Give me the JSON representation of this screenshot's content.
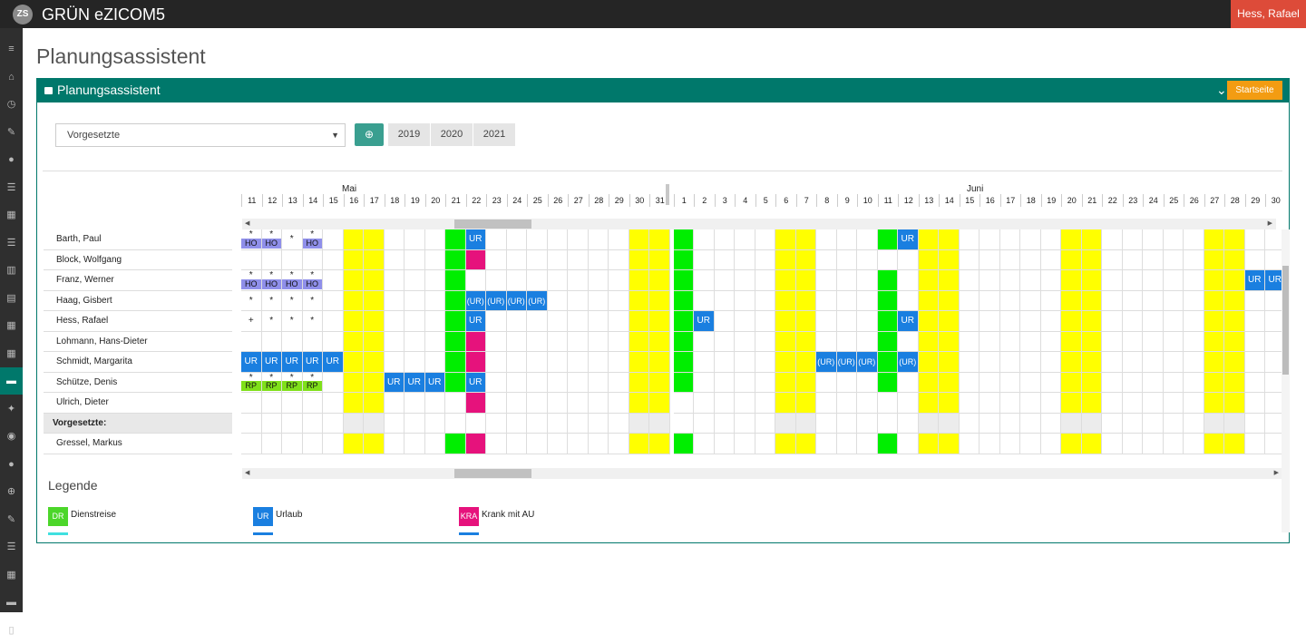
{
  "app": {
    "title": "GRÜN eZICOM5",
    "logo": "ZS",
    "user": "Hess, Rafael"
  },
  "sidebar_icons": [
    "menu-icon",
    "home-icon",
    "clock-icon",
    "edit-icon",
    "info-icon",
    "list-icon",
    "table-icon",
    "list-icon",
    "chart-icon",
    "calendar-icon",
    "table-icon",
    "table-icon",
    "briefcase-icon",
    "wrench-icon",
    "users-icon",
    "info-icon",
    "plus-circle-icon",
    "edit-icon",
    "list-icon",
    "table-icon",
    "briefcase-icon",
    "document-icon"
  ],
  "page": {
    "title": "Planungsassistent"
  },
  "panel": {
    "title": "Planungsassistent",
    "start_button": "Startseite"
  },
  "filter": {
    "select_value": "Vorgesetzte",
    "years": [
      "2019",
      "2020",
      "2021"
    ]
  },
  "months": {
    "may": "Mai",
    "june": "Juni"
  },
  "day_headers": [
    "11",
    "12",
    "13",
    "14",
    "15",
    "16",
    "17",
    "18",
    "19",
    "20",
    "21",
    "22",
    "23",
    "24",
    "25",
    "26",
    "27",
    "28",
    "29",
    "30",
    "31",
    "1",
    "2",
    "3",
    "4",
    "5",
    "6",
    "7",
    "8",
    "9",
    "10",
    "11",
    "12",
    "13",
    "14",
    "15",
    "16",
    "17",
    "18",
    "19",
    "20",
    "21",
    "22",
    "23",
    "24",
    "25",
    "26",
    "27",
    "28",
    "29",
    "30"
  ],
  "column_colors": {
    "yellow": [
      5,
      6,
      19,
      20,
      26,
      27,
      33,
      34,
      40,
      41,
      47,
      48
    ],
    "green": [
      10,
      21
    ],
    "green_rows_only": {
      "col": 31,
      "rows": [
        0,
        2,
        3,
        4,
        5,
        6,
        7,
        10
      ]
    },
    "pink": {
      "col": 11,
      "rows": [
        1,
        5,
        6,
        8,
        10
      ]
    },
    "green_col10_rows": [
      0,
      1,
      2,
      3,
      4,
      5,
      6,
      7,
      10
    ],
    "green_col21_rows": [
      0,
      1,
      2,
      3,
      4,
      5,
      6,
      7,
      10
    ]
  },
  "rows": [
    {
      "name": "Barth, Paul"
    },
    {
      "name": "Block, Wolfgang"
    },
    {
      "name": "Franz, Werner"
    },
    {
      "name": "Haag, Gisbert"
    },
    {
      "name": "Hess, Rafael"
    },
    {
      "name": "Lohmann, Hans-Dieter"
    },
    {
      "name": "Schmidt, Margarita"
    },
    {
      "name": "Schütze, Denis"
    },
    {
      "name": "Ulrich, Dieter"
    },
    {
      "name": "Vorgesetzte:",
      "group": true
    },
    {
      "name": "Gressel, Markus"
    }
  ],
  "entries": [
    {
      "r": 0,
      "c": 0,
      "mark": "*",
      "tag": "HO",
      "type": "ho"
    },
    {
      "r": 0,
      "c": 1,
      "mark": "*",
      "tag": "HO",
      "type": "ho"
    },
    {
      "r": 0,
      "c": 2,
      "center": "*"
    },
    {
      "r": 0,
      "c": 3,
      "mark": "*",
      "tag": "HO",
      "type": "ho"
    },
    {
      "r": 0,
      "c": 11,
      "text": "UR",
      "type": "ur"
    },
    {
      "r": 0,
      "c": 32,
      "text": "UR",
      "type": "ur"
    },
    {
      "r": 2,
      "c": 0,
      "mark": "*",
      "tag": "HO",
      "type": "ho"
    },
    {
      "r": 2,
      "c": 1,
      "mark": "*",
      "tag": "HO",
      "type": "ho"
    },
    {
      "r": 2,
      "c": 2,
      "mark": "*",
      "tag": "HO",
      "type": "ho"
    },
    {
      "r": 2,
      "c": 3,
      "mark": "*",
      "tag": "HO",
      "type": "ho"
    },
    {
      "r": 2,
      "c": 49,
      "text": "UR",
      "type": "ur"
    },
    {
      "r": 2,
      "c": 50,
      "text": "UR",
      "type": "ur"
    },
    {
      "r": 3,
      "c": 0,
      "center": "*"
    },
    {
      "r": 3,
      "c": 1,
      "center": "*"
    },
    {
      "r": 3,
      "c": 2,
      "center": "*"
    },
    {
      "r": 3,
      "c": 3,
      "center": "*"
    },
    {
      "r": 3,
      "c": 11,
      "text": "(UR)",
      "type": "ur"
    },
    {
      "r": 3,
      "c": 12,
      "text": "(UR)",
      "type": "ur"
    },
    {
      "r": 3,
      "c": 13,
      "text": "(UR)",
      "type": "ur"
    },
    {
      "r": 3,
      "c": 14,
      "text": "(UR)",
      "type": "ur"
    },
    {
      "r": 4,
      "c": 0,
      "center": "+"
    },
    {
      "r": 4,
      "c": 1,
      "center": "*"
    },
    {
      "r": 4,
      "c": 2,
      "center": "*"
    },
    {
      "r": 4,
      "c": 3,
      "center": "*"
    },
    {
      "r": 4,
      "c": 11,
      "text": "UR",
      "type": "ur"
    },
    {
      "r": 4,
      "c": 22,
      "text": "UR",
      "type": "ur"
    },
    {
      "r": 4,
      "c": 32,
      "text": "UR",
      "type": "ur"
    },
    {
      "r": 6,
      "c": 0,
      "text": "UR",
      "type": "ur"
    },
    {
      "r": 6,
      "c": 1,
      "text": "UR",
      "type": "ur"
    },
    {
      "r": 6,
      "c": 2,
      "text": "UR",
      "type": "ur"
    },
    {
      "r": 6,
      "c": 3,
      "text": "UR",
      "type": "ur"
    },
    {
      "r": 6,
      "c": 4,
      "text": "UR",
      "type": "ur"
    },
    {
      "r": 6,
      "c": 28,
      "text": "(UR)",
      "type": "ur"
    },
    {
      "r": 6,
      "c": 29,
      "text": "(UR)",
      "type": "ur"
    },
    {
      "r": 6,
      "c": 30,
      "text": "(UR)",
      "type": "ur"
    },
    {
      "r": 6,
      "c": 32,
      "text": "(UR)",
      "type": "ur"
    },
    {
      "r": 7,
      "c": 0,
      "mark": "*",
      "tag": "RP",
      "type": "rp"
    },
    {
      "r": 7,
      "c": 1,
      "mark": "*",
      "tag": "RP",
      "type": "rp"
    },
    {
      "r": 7,
      "c": 2,
      "mark": "*",
      "tag": "RP",
      "type": "rp"
    },
    {
      "r": 7,
      "c": 3,
      "mark": "*",
      "tag": "RP",
      "type": "rp"
    },
    {
      "r": 7,
      "c": 7,
      "text": "UR",
      "type": "ur"
    },
    {
      "r": 7,
      "c": 8,
      "text": "UR",
      "type": "ur"
    },
    {
      "r": 7,
      "c": 9,
      "text": "UR",
      "type": "ur"
    },
    {
      "r": 7,
      "c": 11,
      "text": "UR",
      "type": "ur"
    }
  ],
  "colors": {
    "yellow": "#ffff00",
    "green": "#00ee00",
    "pink": "#e6127c",
    "ur": "#1a7fe0",
    "ho": "#8f8fea",
    "rp": "#7fe01a",
    "group": "#ececec",
    "teal": "#00786b"
  },
  "legend": {
    "title": "Legende",
    "items": [
      {
        "code": "DR",
        "label": "Dienstreise",
        "color": "#4cd62a",
        "line": "#3fe0e0"
      },
      {
        "code": "UR",
        "label": "Urlaub",
        "color": "#1a7fe0",
        "line": "#1a7fe0"
      },
      {
        "code": "KRA",
        "label": "Krank mit AU",
        "color": "#e6127c",
        "line": "#1a7fe0"
      }
    ]
  }
}
